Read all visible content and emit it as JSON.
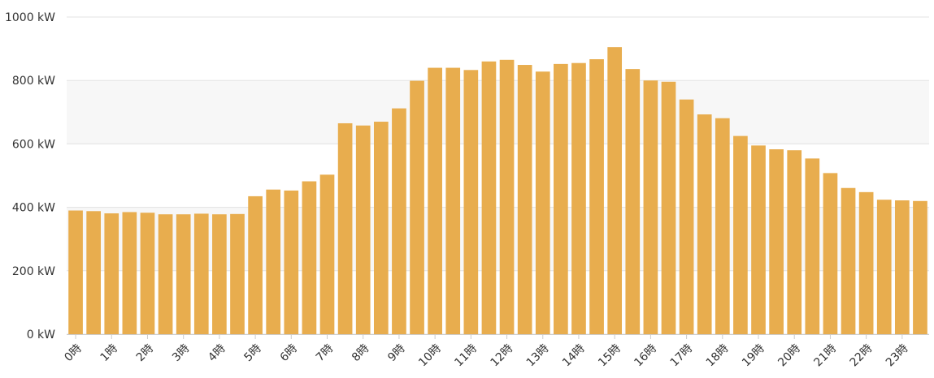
{
  "chart_data": {
    "type": "bar",
    "unit": "kW",
    "ylim": [
      0,
      1000
    ],
    "y_ticks": [
      {
        "value": 0,
        "label": "0 kW"
      },
      {
        "value": 200,
        "label": "200 kW"
      },
      {
        "value": 400,
        "label": "400 kW"
      },
      {
        "value": 600,
        "label": "600 kW"
      },
      {
        "value": 800,
        "label": "800 kW"
      },
      {
        "value": 1000,
        "label": "1000 kW"
      }
    ],
    "x_tick_labels": [
      "0時",
      "1時",
      "2時",
      "3時",
      "4時",
      "5時",
      "6時",
      "7時",
      "8時",
      "9時",
      "10時",
      "11時",
      "12時",
      "13時",
      "14時",
      "15時",
      "16時",
      "17時",
      "18時",
      "19時",
      "20時",
      "21時",
      "22時",
      "23時"
    ],
    "categories": [
      "0:00",
      "0:30",
      "1:00",
      "1:30",
      "2:00",
      "2:30",
      "3:00",
      "3:30",
      "4:00",
      "4:30",
      "5:00",
      "5:30",
      "6:00",
      "6:30",
      "7:00",
      "7:30",
      "8:00",
      "8:30",
      "9:00",
      "9:30",
      "10:00",
      "10:30",
      "11:00",
      "11:30",
      "12:00",
      "12:30",
      "13:00",
      "13:30",
      "14:00",
      "14:30",
      "15:00",
      "15:30",
      "16:00",
      "16:30",
      "17:00",
      "17:30",
      "18:00",
      "18:30",
      "19:00",
      "19:30",
      "20:00",
      "20:30",
      "21:00",
      "21:30",
      "22:00",
      "22:30",
      "23:00",
      "23:30"
    ],
    "values": [
      390,
      388,
      381,
      385,
      383,
      378,
      378,
      380,
      378,
      379,
      435,
      456,
      453,
      482,
      503,
      665,
      658,
      670,
      712,
      799,
      840,
      840,
      833,
      860,
      865,
      849,
      828,
      852,
      855,
      867,
      905,
      836,
      800,
      796,
      740,
      693,
      681,
      625,
      595,
      583,
      580,
      554,
      508,
      461,
      448,
      424,
      422,
      420
    ],
    "grid": true,
    "legend": "none",
    "colors": {
      "bar": "#E8AD4E",
      "band": "#F7F7F7",
      "grid": "#E3E3E3",
      "axis": "#CCCCCC"
    }
  }
}
